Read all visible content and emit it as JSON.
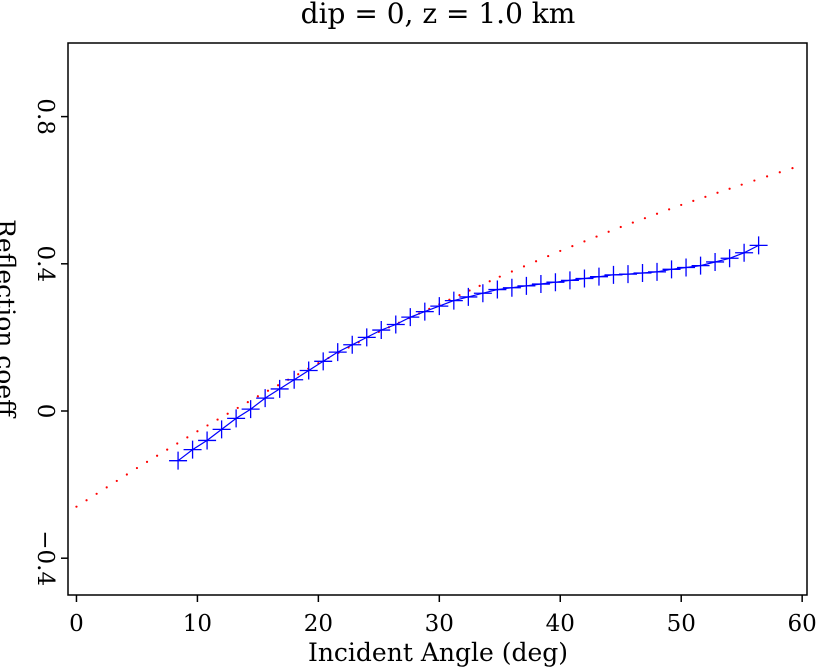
{
  "chart_data": {
    "type": "scatter",
    "title": "dip = 0, z = 1.0 km",
    "xlabel": "Incident Angle (deg)",
    "ylabel": "Reflection coeff",
    "xlim": [
      -0.7,
      60.4
    ],
    "ylim": [
      -0.5,
      1.0
    ],
    "xticks": [
      0,
      10,
      20,
      30,
      40,
      50,
      60
    ],
    "xtick_labels": [
      "0",
      "10",
      "20",
      "30",
      "40",
      "50",
      "60"
    ],
    "yticks": [
      -0.4,
      0,
      0.4,
      0.8
    ],
    "ytick_labels": [
      "−0.4",
      "0",
      "0.4",
      "0.8"
    ],
    "grid": false,
    "legend": "none",
    "series": [
      {
        "style": "dotted-line",
        "color": "#ff0000",
        "x": [
          0.0,
          5.0,
          10.0,
          15.0,
          20.0,
          25.0,
          30.0,
          35.0,
          40.0,
          45.0,
          50.0,
          55.0,
          59.2
        ],
        "y": [
          -0.26,
          -0.155,
          -0.055,
          0.04,
          0.13,
          0.215,
          0.29,
          0.365,
          0.435,
          0.5,
          0.56,
          0.615,
          0.66
        ]
      },
      {
        "style": "plus-markers",
        "color": "#0000ff",
        "x": [
          8.4,
          9.6,
          10.8,
          12.0,
          13.2,
          14.4,
          15.6,
          16.8,
          18.0,
          19.2,
          20.4,
          21.6,
          22.8,
          24.0,
          25.2,
          26.4,
          27.6,
          28.8,
          30.0,
          31.2,
          32.4,
          33.6,
          34.8,
          36.0,
          37.2,
          38.4,
          39.6,
          40.8,
          42.0,
          43.2,
          44.4,
          45.6,
          46.8,
          48.0,
          49.2,
          50.4,
          51.6,
          52.8,
          54.0,
          55.2,
          56.4
        ],
        "y": [
          -0.135,
          -0.105,
          -0.08,
          -0.05,
          -0.02,
          0.005,
          0.035,
          0.06,
          0.085,
          0.11,
          0.135,
          0.16,
          0.18,
          0.2,
          0.22,
          0.235,
          0.255,
          0.27,
          0.285,
          0.3,
          0.31,
          0.32,
          0.33,
          0.335,
          0.34,
          0.345,
          0.35,
          0.355,
          0.36,
          0.365,
          0.37,
          0.372,
          0.375,
          0.378,
          0.385,
          0.39,
          0.395,
          0.405,
          0.415,
          0.43,
          0.45
        ]
      }
    ]
  }
}
